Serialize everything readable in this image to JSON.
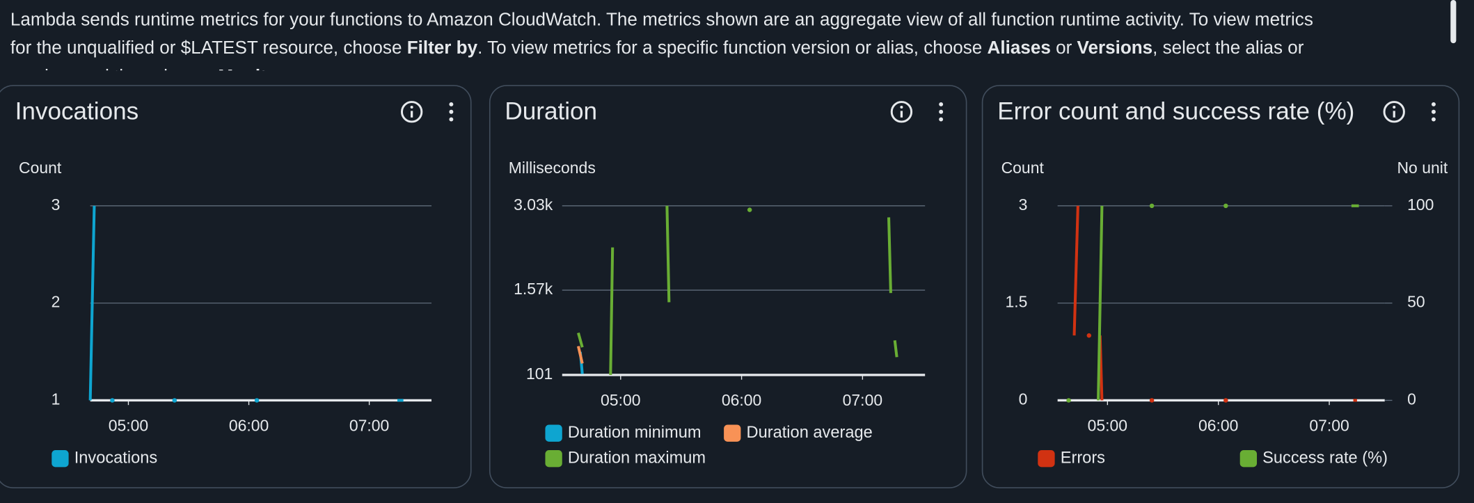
{
  "intro": {
    "lines": [
      [
        {
          "text": "Lambda sends runtime metrics for your functions to Amazon CloudWatch. The metrics shown are an aggregate view of all function runtime activity. To view metrics",
          "bold": false
        }
      ],
      [
        {
          "text": "for the unqualified or $LATEST resource, choose ",
          "bold": false
        },
        {
          "text": "Filter by",
          "bold": true
        },
        {
          "text": ". To view metrics for a specific function version or alias, choose ",
          "bold": false
        },
        {
          "text": "Aliases",
          "bold": true
        },
        {
          "text": " or ",
          "bold": false
        },
        {
          "text": "Versions",
          "bold": true
        },
        {
          "text": ", select the alias or",
          "bold": false
        }
      ],
      [
        {
          "text": "version, and then choose ",
          "bold": false
        },
        {
          "text": "Monitor",
          "bold": true
        },
        {
          "text": ".",
          "bold": false
        }
      ]
    ]
  },
  "chart_data": [
    {
      "type": "line",
      "title": "Invocations",
      "y_label": "Count",
      "xlim": [
        "04:41",
        "07:31"
      ],
      "xticks": [
        "05:00",
        "06:00",
        "07:00"
      ],
      "ylim": [
        1,
        3
      ],
      "yticks": [
        1,
        2,
        3
      ],
      "grid": true,
      "series": [
        {
          "name": "Invocations",
          "color": "#0ea5d0",
          "x": [
            "04:41",
            "04:43",
            "04:48",
            "04:52",
            "04:55",
            "05:23",
            "05:40",
            "06:04",
            "06:30",
            "07:14",
            "07:17"
          ],
          "values": [
            1,
            3,
            null,
            1,
            null,
            1,
            null,
            1,
            null,
            1,
            1
          ]
        }
      ]
    },
    {
      "type": "line",
      "title": "Duration",
      "y_label": "Milliseconds",
      "xlim": [
        "04:31",
        "07:31"
      ],
      "xticks": [
        "05:00",
        "06:00",
        "07:00"
      ],
      "ylim": [
        101,
        3030
      ],
      "yticks": [
        101,
        {
          "value": 1570,
          "label": "1.57k"
        },
        {
          "value": 3030,
          "label": "3.03k"
        }
      ],
      "grid": true,
      "series": [
        {
          "name": "Duration minimum",
          "color": "#0ea5d0",
          "x": [
            "04:40",
            "04:41"
          ],
          "values": [
            500,
            120
          ]
        },
        {
          "name": "Duration average",
          "color": "#f89256",
          "x": [
            "04:39",
            "04:41"
          ],
          "values": [
            600,
            300
          ]
        },
        {
          "name": "Duration maximum",
          "color": "#69ae34",
          "x": [
            "04:39",
            "04:41",
            "04:48",
            "04:55",
            "04:56",
            "05:10",
            "05:23",
            "05:24",
            "05:45",
            "06:04",
            "06:30",
            "07:13",
            "07:14",
            "07:15",
            "07:16",
            "07:17"
          ],
          "values": [
            830,
            580,
            null,
            101,
            2310,
            null,
            3030,
            1360,
            null,
            2960,
            null,
            2830,
            1520,
            null,
            700,
            410
          ]
        }
      ]
    },
    {
      "type": "line",
      "title": "Error count and success rate (%)",
      "y_label": "Count",
      "y2_label": "No unit",
      "xlim": [
        "04:33",
        "07:30"
      ],
      "xticks": [
        "05:00",
        "06:00",
        "07:00"
      ],
      "ylim": [
        0,
        3
      ],
      "yticks": [
        0,
        1.5,
        3
      ],
      "y2lim": [
        0,
        100
      ],
      "y2ticks": [
        0,
        50,
        100
      ],
      "grid": true,
      "series": [
        {
          "name": "Errors",
          "color": "#d13212",
          "x": [
            "04:42",
            "04:44",
            "04:47",
            "04:50",
            "04:53",
            "04:56",
            "04:57",
            "05:10",
            "05:24",
            "05:45",
            "06:04",
            "06:30",
            "07:13",
            "07:15"
          ],
          "values": [
            1,
            3,
            null,
            1,
            null,
            1,
            0,
            null,
            0,
            null,
            0,
            null,
            0,
            0
          ]
        },
        {
          "name": "Success rate (%)",
          "color": "#69ae34",
          "axis": "y2",
          "x": [
            "04:39",
            "04:45",
            "04:55",
            "04:57",
            "05:10",
            "05:24",
            "05:45",
            "06:04",
            "06:30",
            "07:12",
            "07:16"
          ],
          "values": [
            0,
            null,
            0,
            100,
            null,
            100,
            null,
            100,
            null,
            100,
            100
          ]
        }
      ]
    }
  ]
}
